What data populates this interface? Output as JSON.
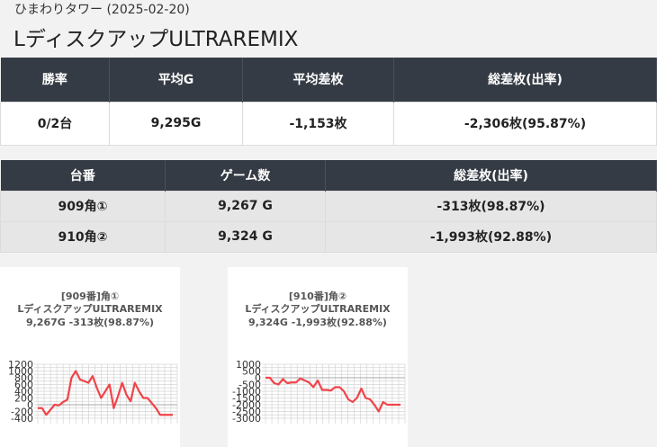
{
  "header": {
    "subtitle": "ひまわりタワー (2025-02-20)",
    "title": "LディスクアップULTRAREMIX"
  },
  "summary": {
    "columns": [
      "勝率",
      "平均G",
      "平均差枚",
      "総差枚(出率)"
    ],
    "values": [
      "0/2台",
      "9,295G",
      "-1,153枚",
      "-2,306枚(95.87%)"
    ]
  },
  "machines": {
    "columns": [
      "台番",
      "ゲーム数",
      "総差枚(出率)"
    ],
    "rows": [
      [
        "909角①",
        "9,267 G",
        "-313枚(98.87%)"
      ],
      [
        "910角②",
        "9,324 G",
        "-1,993枚(92.88%)"
      ]
    ]
  },
  "colors": {
    "line": "#f0444a",
    "header_bg": "#353b44"
  },
  "chart_data": [
    {
      "type": "line",
      "title": [
        "[909番]角①",
        "LディスクアップULTRAREMIX",
        "9,267G -313枚(98.87%)"
      ],
      "yticks": [
        1200,
        1000,
        800,
        600,
        400,
        200,
        0,
        -200,
        -400
      ],
      "ylim": [
        -400,
        1200
      ],
      "values": [
        -100,
        -100,
        -300,
        -150,
        0,
        -20,
        80,
        150,
        800,
        1000,
        750,
        700,
        650,
        850,
        500,
        200,
        400,
        600,
        -100,
        250,
        650,
        300,
        100,
        650,
        400,
        200,
        200,
        50,
        -100,
        -300,
        -300,
        -300,
        -300
      ]
    },
    {
      "type": "line",
      "title": [
        "[910番]角②",
        "LディスクアップULTRAREMIX",
        "9,324G -1,993枚(92.88%)"
      ],
      "yticks": [
        1000,
        500,
        0,
        -500,
        -1000,
        -1500,
        -2000,
        -2500,
        -3000
      ],
      "ylim": [
        -3000,
        1000
      ],
      "values": [
        0,
        0,
        -400,
        -500,
        -100,
        -400,
        -350,
        -350,
        -50,
        -200,
        -350,
        -700,
        -200,
        -900,
        -900,
        -950,
        -700,
        -700,
        -1000,
        -1600,
        -1800,
        -1500,
        -800,
        -1500,
        -1600,
        -2000,
        -2500,
        -1800,
        -2000,
        -2000,
        -2000,
        -2000
      ]
    }
  ]
}
